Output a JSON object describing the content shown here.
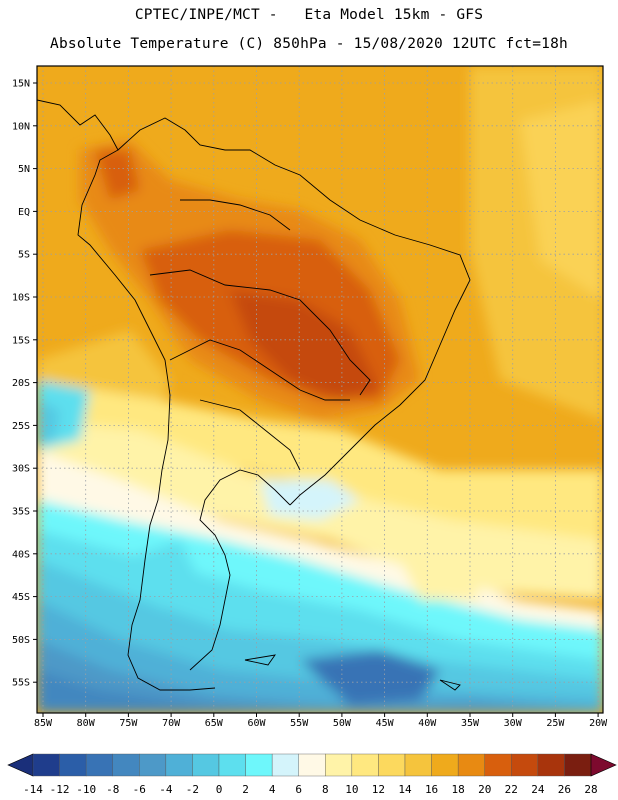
{
  "header": {
    "line1": "CPTEC/INPE/MCT -   Eta Model 15km - GFS",
    "line2": "Absolute Temperature (C) 850hPa - 15/08/2020 12UTC fct=18h"
  },
  "map": {
    "lat_labels": [
      "15N",
      "10N",
      "5N",
      "EQ",
      "5S",
      "10S",
      "15S",
      "20S",
      "25S",
      "30S",
      "35S",
      "40S",
      "45S",
      "50S",
      "55S"
    ],
    "lon_labels": [
      "85W",
      "80W",
      "75W",
      "70W",
      "65W",
      "60W",
      "55W",
      "50W",
      "45W",
      "40W",
      "35W",
      "30W",
      "25W",
      "20W"
    ]
  },
  "colorbar": {
    "labels": [
      "-14",
      "-12",
      "-10",
      "-8",
      "-6",
      "-4",
      "-2",
      "0",
      "2",
      "4",
      "6",
      "8",
      "10",
      "12",
      "14",
      "16",
      "18",
      "20",
      "22",
      "24",
      "26",
      "28"
    ],
    "colors": [
      "#1f3d8c",
      "#2b5ea8",
      "#3873b5",
      "#4387bf",
      "#4d99c8",
      "#4fb0d7",
      "#55c8e2",
      "#5ddfee",
      "#6ef7fb",
      "#d4f4fb",
      "#fff9e6",
      "#fff3a8",
      "#ffe880",
      "#fcd95e",
      "#f5c43d",
      "#efaa1c",
      "#e88a12",
      "#d85f0d",
      "#c54a0d",
      "#a8340c",
      "#7a1e10"
    ],
    "under_color": "#1a2f7a",
    "over_color": "#7d0a2e"
  }
}
